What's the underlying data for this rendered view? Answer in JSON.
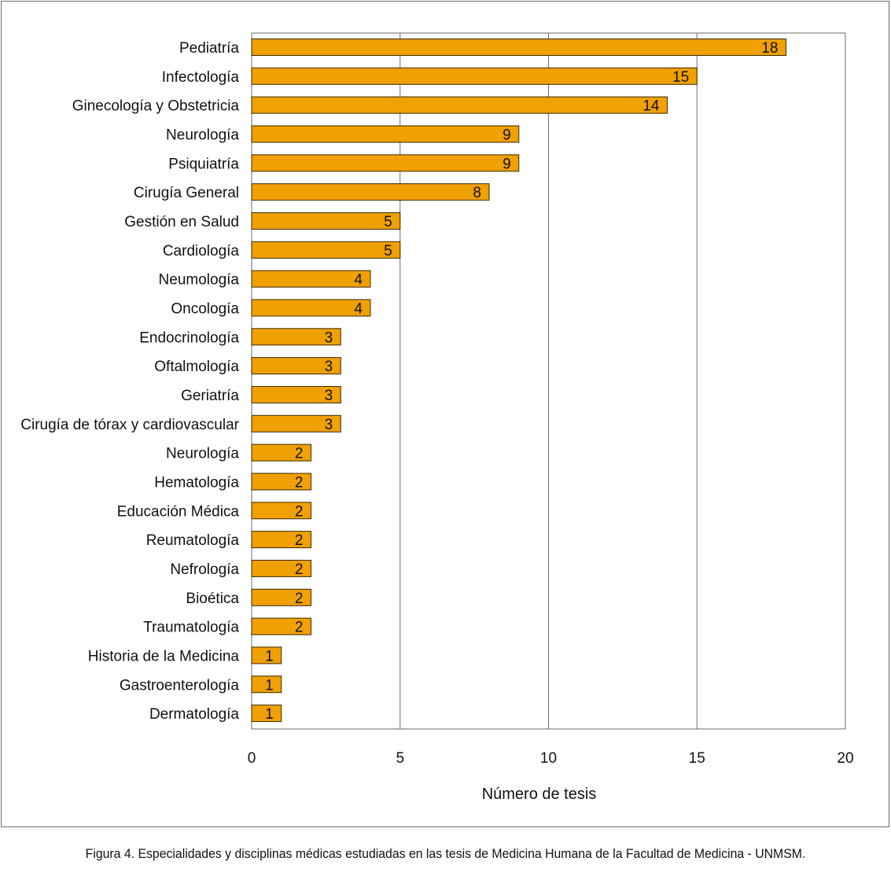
{
  "caption": "Figura 4. Especialidades y disciplinas médicas estudiadas en las tesis de Medicina Humana de la Facultad de Medicina - UNMSM.",
  "chart_data": {
    "type": "bar",
    "orientation": "horizontal",
    "title": "",
    "xlabel": "Número de tesis",
    "ylabel": "",
    "xlim": [
      0,
      20
    ],
    "xticks": [
      0,
      5,
      10,
      15,
      20
    ],
    "grid": "vertical",
    "legend": "none",
    "bar_color": "#f0a000",
    "bar_border": "#3a2a00",
    "categories": [
      "Pediatría",
      "Infectología",
      "Ginecología y Obstetricia",
      "Neurología",
      "Psiquiatría",
      "Cirugía General",
      "Gestión en Salud",
      "Cardiología",
      "Neumología",
      "Oncología",
      "Endocrinología",
      "Oftalmología",
      "Geriatría",
      "Cirugía de tórax y cardiovascular",
      "Neurología",
      "Hematología",
      "Educación Médica",
      "Reumatología",
      "Nefrología",
      "Bioética",
      "Traumatología",
      "Historia de la Medicina",
      "Gastroenterología",
      "Dermatología"
    ],
    "values": [
      18,
      15,
      14,
      9,
      9,
      8,
      5,
      5,
      4,
      4,
      3,
      3,
      3,
      3,
      2,
      2,
      2,
      2,
      2,
      2,
      2,
      1,
      1,
      1
    ]
  }
}
